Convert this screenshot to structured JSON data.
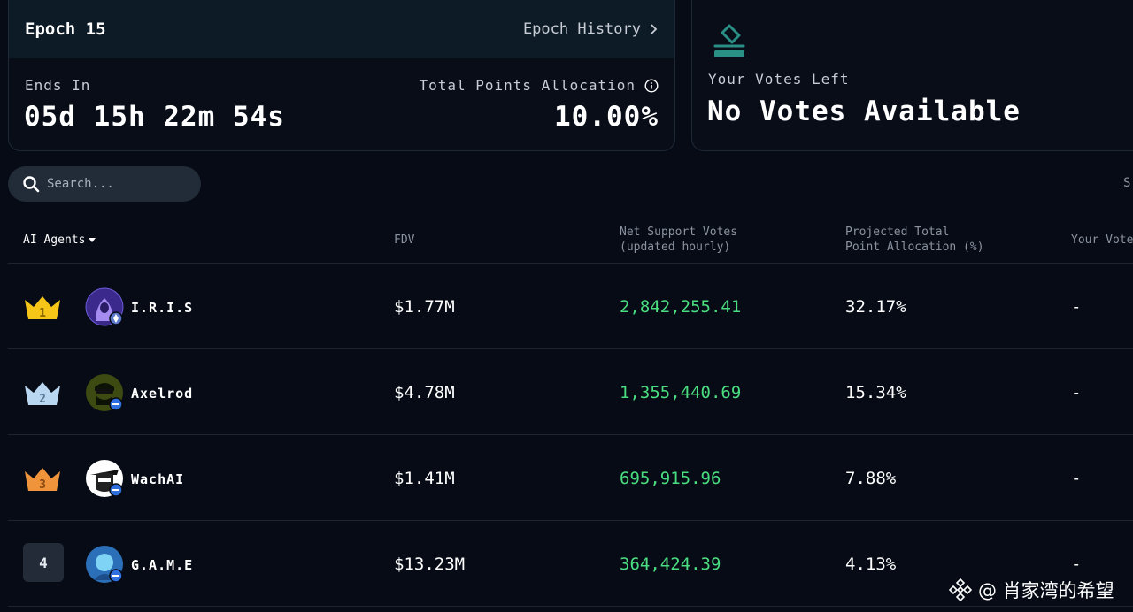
{
  "epoch": {
    "title": "Epoch 15",
    "history_label": "Epoch History",
    "ends_label": "Ends In",
    "ends_value": "05d 15h 22m 54s",
    "allocation_label": "Total Points Allocation",
    "allocation_value": "10.00%"
  },
  "votes": {
    "label": "Your Votes Left",
    "value": "No Votes Available"
  },
  "search": {
    "placeholder": "Search..."
  },
  "sort_cut": "S",
  "table": {
    "headers": {
      "agents": "AI Agents",
      "fdv": "FDV",
      "net_line1": "Net Support Votes",
      "net_line2": "(updated hourly)",
      "proj_line1": "Projected Total",
      "proj_line2": "Point Allocation (%)",
      "your": "Your Vote"
    },
    "rows": [
      {
        "rank": "1",
        "name": "I.R.I.S",
        "fdv": "$1.77M",
        "net": "2,842,255.41",
        "proj": "32.17%",
        "your": "-"
      },
      {
        "rank": "2",
        "name": "Axelrod",
        "fdv": "$4.78M",
        "net": "1,355,440.69",
        "proj": "15.34%",
        "your": "-"
      },
      {
        "rank": "3",
        "name": "WachAI",
        "fdv": "$1.41M",
        "net": "695,915.96",
        "proj": "7.88%",
        "your": "-"
      },
      {
        "rank": "4",
        "name": "G.A.M.E",
        "fdv": "$13.23M",
        "net": "364,424.39",
        "proj": "4.13%",
        "your": "-"
      }
    ]
  },
  "watermark": "@ 肖家湾的希望",
  "colors": {
    "positive": "#4ade80",
    "gold": "#f5c518",
    "silver": "#b9d7f0",
    "bronze": "#f0943c",
    "teal": "#2a8f85"
  }
}
